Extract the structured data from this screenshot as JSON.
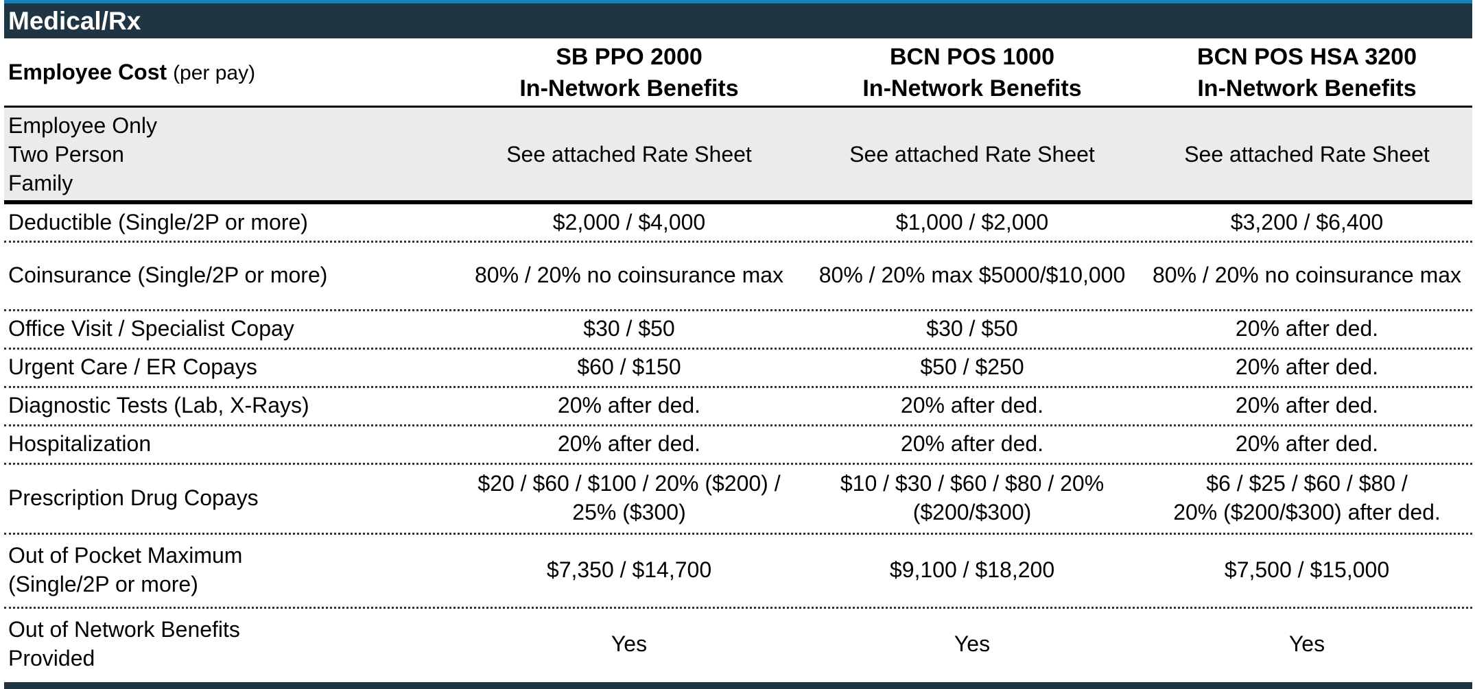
{
  "title": "Medical/Rx",
  "header": {
    "label_bold": "Employee Cost",
    "label_sub": "(per pay)",
    "plans": [
      {
        "line1": "SB PPO 2000",
        "line2": "In-Network Benefits"
      },
      {
        "line1": "BCN POS 1000",
        "line2": "In-Network Benefits"
      },
      {
        "line1": "BCN POS HSA 3200",
        "line2": "In-Network Benefits"
      }
    ]
  },
  "cost_row": {
    "tiers": [
      "Employee Only",
      "Two Person",
      "Family"
    ],
    "values": [
      "See attached Rate Sheet",
      "See attached Rate Sheet",
      "See attached Rate Sheet"
    ]
  },
  "rows": [
    {
      "label": [
        "Deductible (Single/2P or more)"
      ],
      "values": [
        [
          "$2,000 / $4,000"
        ],
        [
          "$1,000 / $2,000"
        ],
        [
          "$3,200 / $6,400"
        ]
      ]
    },
    {
      "label": [
        "Coinsurance (Single/2P or more)"
      ],
      "values": [
        [
          "80% / 20% no coinsurance max"
        ],
        [
          "80% / 20% max $5000/$10,000"
        ],
        [
          "80% / 20% no coinsurance max"
        ]
      ]
    },
    {
      "label": [
        "Office Visit / Specialist Copay"
      ],
      "values": [
        [
          "$30 / $50"
        ],
        [
          "$30 / $50"
        ],
        [
          "20% after ded."
        ]
      ]
    },
    {
      "label": [
        "Urgent Care / ER Copays"
      ],
      "values": [
        [
          "$60 / $150"
        ],
        [
          "$50 / $250"
        ],
        [
          "20% after ded."
        ]
      ]
    },
    {
      "label": [
        "Diagnostic Tests (Lab, X-Rays)"
      ],
      "values": [
        [
          "20% after ded."
        ],
        [
          "20% after ded."
        ],
        [
          "20% after ded."
        ]
      ]
    },
    {
      "label": [
        "Hospitalization"
      ],
      "values": [
        [
          "20% after ded."
        ],
        [
          "20% after ded."
        ],
        [
          "20% after ded."
        ]
      ]
    },
    {
      "label": [
        "Prescription Drug Copays"
      ],
      "values": [
        [
          "$20 / $60 / $100 / 20% ($200) /",
          "25% ($300)"
        ],
        [
          "$10 / $30 / $60 / $80 / 20%",
          "($200/$300)"
        ],
        [
          "$6 / $25 / $60 / $80 /",
          "20% ($200/$300) after ded."
        ]
      ]
    },
    {
      "label": [
        "Out of Pocket Maximum",
        "(Single/2P or more)"
      ],
      "values": [
        [
          "$7,350 / $14,700"
        ],
        [
          "$9,100 / $18,200"
        ],
        [
          "$7,500 / $15,000"
        ]
      ]
    },
    {
      "label": [
        "Out of Network Benefits",
        "Provided"
      ],
      "values": [
        [
          "Yes"
        ],
        [
          "Yes"
        ],
        [
          "Yes"
        ]
      ]
    }
  ]
}
